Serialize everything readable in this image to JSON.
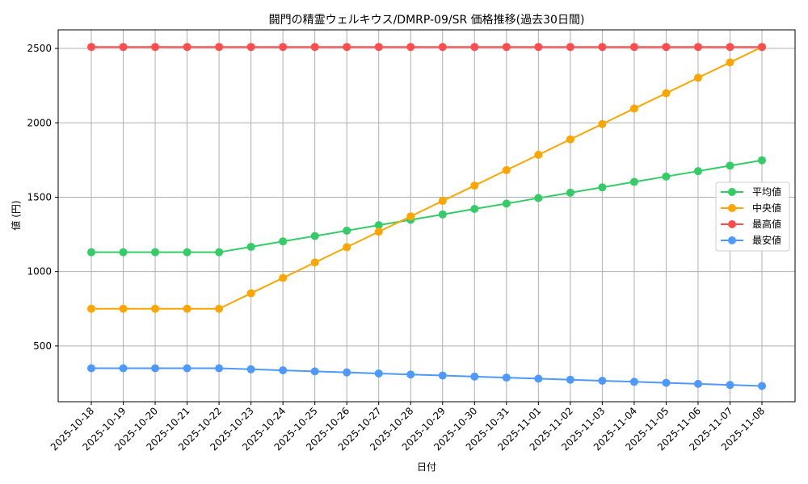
{
  "chart_data": {
    "type": "line",
    "title": "闘門の精霊ウェルキウス/DMRP-09/SR 価格推移(過去30日間)",
    "xlabel": "日付",
    "ylabel": "値 (円)",
    "ylim": [
      125,
      2625
    ],
    "yticks": [
      500,
      1000,
      1500,
      2000,
      2500
    ],
    "grid": true,
    "legend_position": "center right",
    "categories": [
      "2025-10-18",
      "2025-10-19",
      "2025-10-20",
      "2025-10-21",
      "2025-10-22",
      "2025-10-23",
      "2025-10-24",
      "2025-10-25",
      "2025-10-26",
      "2025-10-27",
      "2025-10-28",
      "2025-10-29",
      "2025-10-30",
      "2025-10-31",
      "2025-11-01",
      "2025-11-02",
      "2025-11-03",
      "2025-11-04",
      "2025-11-05",
      "2025-11-06",
      "2025-11-07",
      "2025-11-08"
    ],
    "series": [
      {
        "name": "平均値",
        "color": "#33cc66",
        "values": [
          1130,
          1130,
          1130,
          1130,
          1130,
          1166,
          1203,
          1239,
          1275,
          1312,
          1348,
          1384,
          1421,
          1457,
          1494,
          1530,
          1566,
          1603,
          1639,
          1675,
          1712,
          1748
        ]
      },
      {
        "name": "中央値",
        "color": "#ffa500",
        "values": [
          750,
          750,
          750,
          750,
          750,
          854,
          957,
          1061,
          1164,
          1268,
          1371,
          1475,
          1578,
          1682,
          1785,
          1889,
          1992,
          2096,
          2199,
          2303,
          2406,
          2510
        ]
      },
      {
        "name": "最高値",
        "color": "#ff4d4d",
        "values": [
          2510,
          2510,
          2510,
          2510,
          2510,
          2510,
          2510,
          2510,
          2510,
          2510,
          2510,
          2510,
          2510,
          2510,
          2510,
          2510,
          2510,
          2510,
          2510,
          2510,
          2510,
          2510
        ]
      },
      {
        "name": "最安値",
        "color": "#4d99ff",
        "values": [
          350,
          350,
          350,
          350,
          350,
          343,
          336,
          329,
          322,
          315,
          308,
          301,
          294,
          287,
          280,
          273,
          266,
          259,
          252,
          245,
          238,
          231
        ]
      }
    ]
  }
}
